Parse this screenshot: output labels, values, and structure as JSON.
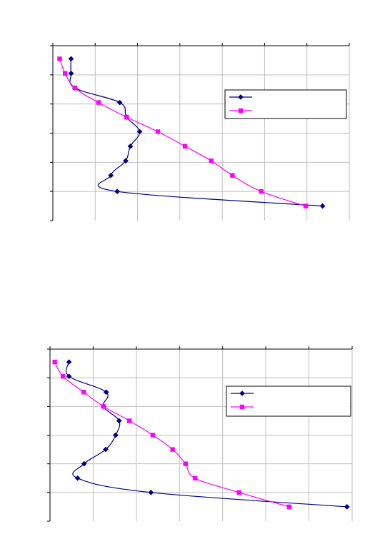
{
  "charts": [
    {
      "type": "line",
      "title": "",
      "xlabel": "",
      "ylabel": "",
      "xlim": [
        0,
        700
      ],
      "ylim": [
        0,
        6
      ],
      "x_tick_count": 8,
      "y_tick_count": 7,
      "grid": "vertical",
      "legend": "right",
      "series": [
        {
          "name": "",
          "color": "#000080",
          "marker": "diamond",
          "points": [
            [
              43,
              5.55
            ],
            [
              43,
              5.05
            ],
            [
              52,
              4.55
            ],
            [
              158,
              4.05
            ],
            [
              174,
              3.55
            ],
            [
              205,
              3.05
            ],
            [
              183,
              2.55
            ],
            [
              172,
              2.05
            ],
            [
              137,
              1.55
            ],
            [
              152,
              1.0
            ],
            [
              637,
              0.5
            ]
          ]
        },
        {
          "name": "",
          "color": "#ff00ff",
          "marker": "square",
          "points": [
            [
              16,
              5.55
            ],
            [
              29,
              5.05
            ],
            [
              52,
              4.55
            ],
            [
              108,
              4.05
            ],
            [
              174,
              3.55
            ],
            [
              248,
              3.05
            ],
            [
              312,
              2.55
            ],
            [
              374,
              2.05
            ],
            [
              424,
              1.55
            ],
            [
              492,
              1.0
            ],
            [
              597,
              0.5
            ]
          ]
        }
      ]
    },
    {
      "type": "line",
      "title": "",
      "xlabel": "",
      "ylabel": "",
      "xlim": [
        0,
        700
      ],
      "ylim": [
        0,
        6
      ],
      "x_tick_count": 8,
      "y_tick_count": 7,
      "grid": "vertical",
      "legend": "right",
      "series": [
        {
          "name": "",
          "color": "#000080",
          "marker": "diamond",
          "points": [
            [
              44,
              5.55
            ],
            [
              44,
              5.05
            ],
            [
              130,
              4.5
            ],
            [
              124,
              4.0
            ],
            [
              160,
              3.5
            ],
            [
              152,
              3.0
            ],
            [
              129,
              2.5
            ],
            [
              79,
              2.0
            ],
            [
              64,
              1.5
            ],
            [
              234,
              1.0
            ],
            [
              688,
              0.5
            ]
          ]
        },
        {
          "name": "",
          "color": "#ff00ff",
          "marker": "square",
          "points": [
            [
              11,
              5.55
            ],
            [
              30,
              5.05
            ],
            [
              78,
              4.5
            ],
            [
              124,
              4.0
            ],
            [
              184,
              3.5
            ],
            [
              238,
              3.0
            ],
            [
              284,
              2.5
            ],
            [
              314,
              2.0
            ],
            [
              336,
              1.5
            ],
            [
              438,
              1.0
            ],
            [
              554,
              0.5
            ]
          ]
        }
      ]
    }
  ]
}
